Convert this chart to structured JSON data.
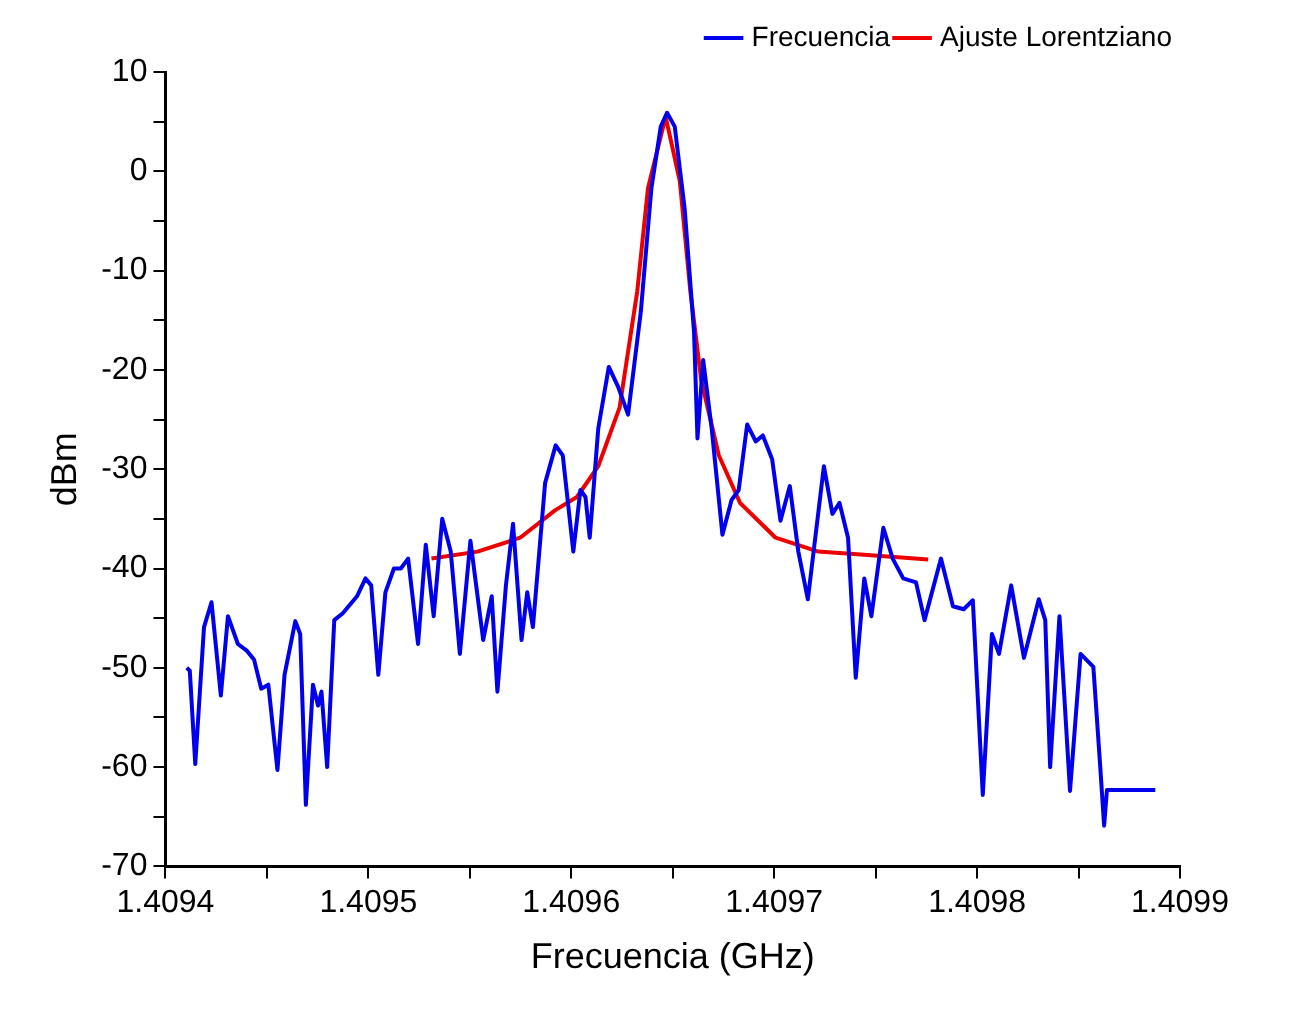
{
  "chart_data": {
    "type": "line",
    "xlabel": "Frecuencia (GHz)",
    "ylabel": "dBm",
    "xlim": [
      1.4094,
      1.4099
    ],
    "ylim": [
      -70,
      10
    ],
    "xticks": [
      1.4094,
      {
        "value": 1.40945,
        "label": null
      },
      1.4095,
      {
        "value": 1.40955,
        "label": null
      },
      1.4096,
      {
        "value": 1.40965,
        "label": null
      },
      1.4097,
      {
        "value": 1.40975,
        "label": null
      },
      1.4098,
      {
        "value": 1.40985,
        "label": null
      },
      1.4099
    ],
    "yticks": [
      -70,
      {
        "value": -65,
        "label": null
      },
      -60,
      {
        "value": -55,
        "label": null
      },
      -50,
      {
        "value": -45,
        "label": null
      },
      -40,
      {
        "value": -35,
        "label": null
      },
      -30,
      {
        "value": -25,
        "label": null
      },
      -20,
      {
        "value": -15,
        "label": null
      },
      -10,
      {
        "value": -5,
        "label": null
      },
      0,
      {
        "value": 5,
        "label": null
      },
      10
    ],
    "grid": false,
    "legend": "top right",
    "marker": "none",
    "line_style": "solid",
    "series": [
      {
        "name": "Frecuencia",
        "color": "#0000ee",
        "x": [
          1.4094105,
          1.409412,
          1.4094147,
          1.409419,
          1.4094227,
          1.4094273,
          1.4094308,
          1.4094357,
          1.4094402,
          1.4094437,
          1.4094472,
          1.4094507,
          1.4094552,
          1.4094587,
          1.409464,
          1.4094664,
          1.4094692,
          1.4094727,
          1.4094752,
          1.4094769,
          1.4094797,
          1.4094832,
          1.4094874,
          1.4094944,
          1.4094986,
          1.4095014,
          1.4095049,
          1.4095084,
          1.4095126,
          1.409516,
          1.4095196,
          1.4095245,
          1.4095283,
          1.4095322,
          1.4095364,
          1.4095406,
          1.4095451,
          1.4095503,
          1.4095566,
          1.4095608,
          1.4095636,
          1.4095678,
          1.4095713,
          1.4095755,
          1.4095783,
          1.4095811,
          1.4095871,
          1.4095923,
          1.4095958,
          1.409601,
          1.4096045,
          1.409607,
          1.4096091,
          1.4096133,
          1.4096185,
          1.4096231,
          1.409628,
          1.4096343,
          1.4096395,
          1.4096441,
          1.4096472,
          1.409651,
          1.4096559,
          1.4096605,
          1.4096622,
          1.409665,
          1.4096692,
          1.4096745,
          1.409679,
          1.4096825,
          1.4096867,
          1.4096909,
          1.4096944,
          1.409699,
          1.4097031,
          1.4097077,
          1.4097119,
          1.4097166,
          1.4097245,
          1.4097287,
          1.4097322,
          1.4097364,
          1.4097402,
          1.4097444,
          1.4097479,
          1.4097538,
          1.4097584,
          1.4097636,
          1.4097699,
          1.4097741,
          1.4097822,
          1.4097881,
          1.4097934,
          1.4097979,
          1.4098028,
          1.4098073,
          1.4098108,
          1.4098168,
          1.4098231,
          1.4098304,
          1.4098336,
          1.409836,
          1.4098406,
          1.4098458,
          1.409851,
          1.4098573,
          1.4098608,
          1.4098626,
          1.409864,
          1.4098878
        ],
        "values": [
          -50,
          -50.3,
          -59.7,
          -45.9,
          -43.4,
          -52.8,
          -44.8,
          -47.6,
          -48.3,
          -49.2,
          -52.1,
          -51.7,
          -60.3,
          -50.7,
          -45.3,
          -46.6,
          -63.8,
          -51.7,
          -53.8,
          -52.4,
          -60,
          -45.2,
          -44.5,
          -42.8,
          -41,
          -41.7,
          -50.7,
          -42.4,
          -40,
          -40,
          -39,
          -47.6,
          -37.6,
          -44.8,
          -35,
          -38.3,
          -48.6,
          -37.2,
          -47.2,
          -42.8,
          -52.4,
          -41.7,
          -35.5,
          -47.2,
          -42.4,
          -45.9,
          -31.4,
          -27.6,
          -28.6,
          -38.3,
          -32.1,
          -32.8,
          -36.9,
          -25.9,
          -19.7,
          -21.7,
          -24.5,
          -14.1,
          -1.7,
          4.5,
          5.9,
          4.5,
          -3.8,
          -16.2,
          -26.9,
          -19,
          -25.9,
          -36.6,
          -33.1,
          -32.1,
          -25.5,
          -27.2,
          -26.6,
          -29,
          -35.2,
          -31.7,
          -38.3,
          -43.1,
          -29.7,
          -34.5,
          -33.4,
          -36.9,
          -51,
          -41,
          -44.8,
          -35.9,
          -39,
          -41,
          -41.4,
          -45.2,
          -39,
          -43.8,
          -44.1,
          -43.2,
          -62.8,
          -46.6,
          -48.6,
          -41.7,
          -49,
          -43.1,
          -45.2,
          -60,
          -44.8,
          -62.4,
          -48.6,
          -49.9,
          -60.3,
          -65.9,
          -62.3,
          -62.3
        ]
      },
      {
        "name": "Ajuste Lorentziano",
        "color": "#ee0000",
        "x": [
          1.4095311,
          1.4095538,
          1.4095748,
          1.4095923,
          1.4096028,
          1.4096133,
          1.4096238,
          1.4096325,
          1.4096378,
          1.4096465,
          1.4096535,
          1.4096587,
          1.409664,
          1.4096727,
          1.4096832,
          1.4097007,
          1.4097217,
          1.4097427,
          1.4097759
        ],
        "values": [
          -39,
          -38.3,
          -36.9,
          -34.1,
          -32.8,
          -29.7,
          -23.8,
          -12.1,
          -1.7,
          5.5,
          -1,
          -12.1,
          -21,
          -28.6,
          -33.4,
          -36.9,
          -38.3,
          -38.6,
          -39.1
        ]
      }
    ]
  }
}
